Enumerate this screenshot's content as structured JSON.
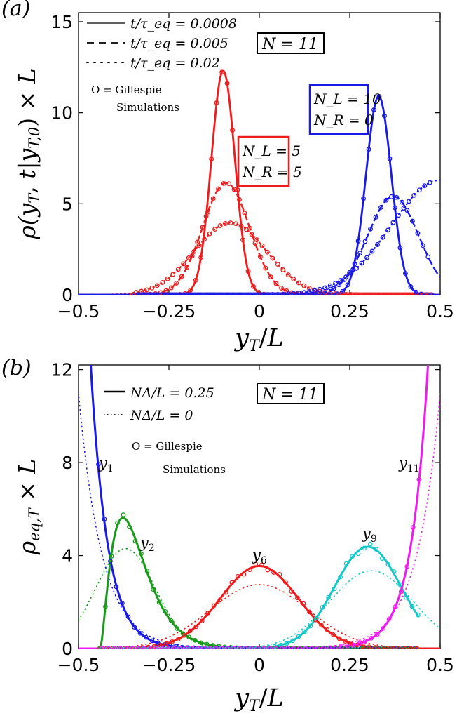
{
  "chart_data": [
    {
      "type": "line",
      "panel_label": "(a)",
      "xlabel": "y_T / L",
      "ylabel": "ρ(y_T, t|y_T,0) × L",
      "xlim": [
        -0.5,
        0.5
      ],
      "ylim": [
        0,
        15.5
      ],
      "xticks": [
        -0.5,
        -0.25,
        0,
        0.25,
        0.5
      ],
      "xtick_labels": [
        "−0.5",
        "−0.25",
        "0",
        "0.25",
        "0.5"
      ],
      "yticks": [
        0,
        5,
        10,
        15
      ],
      "ytick_labels": [
        "0",
        "5",
        "10",
        "15"
      ],
      "grid": false,
      "legend_position": "top-left",
      "legend": [
        {
          "label": "t/τ_eq = 0.0008",
          "style": "solid"
        },
        {
          "label": "t/τ_eq = 0.005",
          "style": "dashed"
        },
        {
          "label": "t/τ_eq = 0.02",
          "style": "dotted"
        }
      ],
      "annotations": {
        "n_box": "N = 11",
        "gillespie_1": "O = Gillespie",
        "gillespie_2": "Simulations",
        "box_red_1": "N_L = 5",
        "box_red_2": "N_R = 5",
        "box_blue_1": "N_L = 10",
        "box_blue_2": "N_R = 0"
      },
      "colors": {
        "red": "#ee1c1c",
        "blue": "#1a1ae6"
      },
      "series": [
        {
          "group": "red",
          "style": "solid",
          "kind": "gauss",
          "mu": -0.1,
          "sigma": 0.0325,
          "amp": 12.3
        },
        {
          "group": "red",
          "style": "dashed",
          "kind": "gauss",
          "mu": -0.092,
          "sigma": 0.0645,
          "amp": 6.15
        },
        {
          "group": "red",
          "style": "dotted",
          "kind": "gauss",
          "mu": -0.08,
          "sigma": 0.1,
          "amp": 3.95
        },
        {
          "group": "blue",
          "style": "solid",
          "kind": "gauss",
          "mu": 0.33,
          "sigma": 0.035,
          "amp": 10.9
        },
        {
          "group": "blue",
          "style": "dashed",
          "kind": "gauss",
          "mu": 0.37,
          "sigma": 0.07,
          "amp": 5.4
        },
        {
          "group": "blue",
          "style": "dotted",
          "kind": "gauss",
          "mu": 0.5,
          "sigma": 0.135,
          "amp": 6.3
        }
      ],
      "markers_xrange": [
        -0.35,
        0.48
      ]
    },
    {
      "type": "line",
      "panel_label": "(b)",
      "xlabel": "y_T / L",
      "ylabel": "ρ_eq,T × L",
      "xlim": [
        -0.5,
        0.5
      ],
      "ylim": [
        0,
        12.2
      ],
      "xticks": [
        -0.5,
        -0.25,
        0,
        0.25,
        0.5
      ],
      "xtick_labels": [
        "−0.5",
        "−0.25",
        "0",
        "0.25",
        "0.5"
      ],
      "yticks": [
        0,
        4,
        8,
        12
      ],
      "ytick_labels": [
        "0",
        "4",
        "8",
        "12"
      ],
      "grid": false,
      "legend_position": "top-left",
      "legend": [
        {
          "label": "NΔ/L = 0.25",
          "style": "solid"
        },
        {
          "label": "NΔ/L = 0",
          "style": "dotted"
        }
      ],
      "annotations": {
        "n_box": "N = 11",
        "gillespie_1": "O = Gillespie",
        "gillespie_2": "Simulations"
      },
      "curve_labels": [
        {
          "base": "y",
          "sub": "1"
        },
        {
          "base": "y",
          "sub": "2"
        },
        {
          "base": "y",
          "sub": "6"
        },
        {
          "base": "y",
          "sub": "9"
        },
        {
          "base": "y",
          "sub": "11"
        }
      ],
      "colors": {
        "y1": "#1a1ae6",
        "y2": "#1a9a1a",
        "y6": "#ee1c1c",
        "y9": "#15c8c8",
        "y11": "#ee1aee"
      },
      "series": [
        {
          "name": "y1",
          "color": "blue",
          "kind": "y1"
        },
        {
          "name": "y2",
          "color": "green",
          "kind": "y2"
        },
        {
          "name": "y6",
          "color": "red",
          "kind": "y6"
        },
        {
          "name": "y9",
          "color": "cyan",
          "kind": "y9"
        },
        {
          "name": "y11",
          "color": "magenta",
          "kind": "y11"
        }
      ]
    }
  ]
}
